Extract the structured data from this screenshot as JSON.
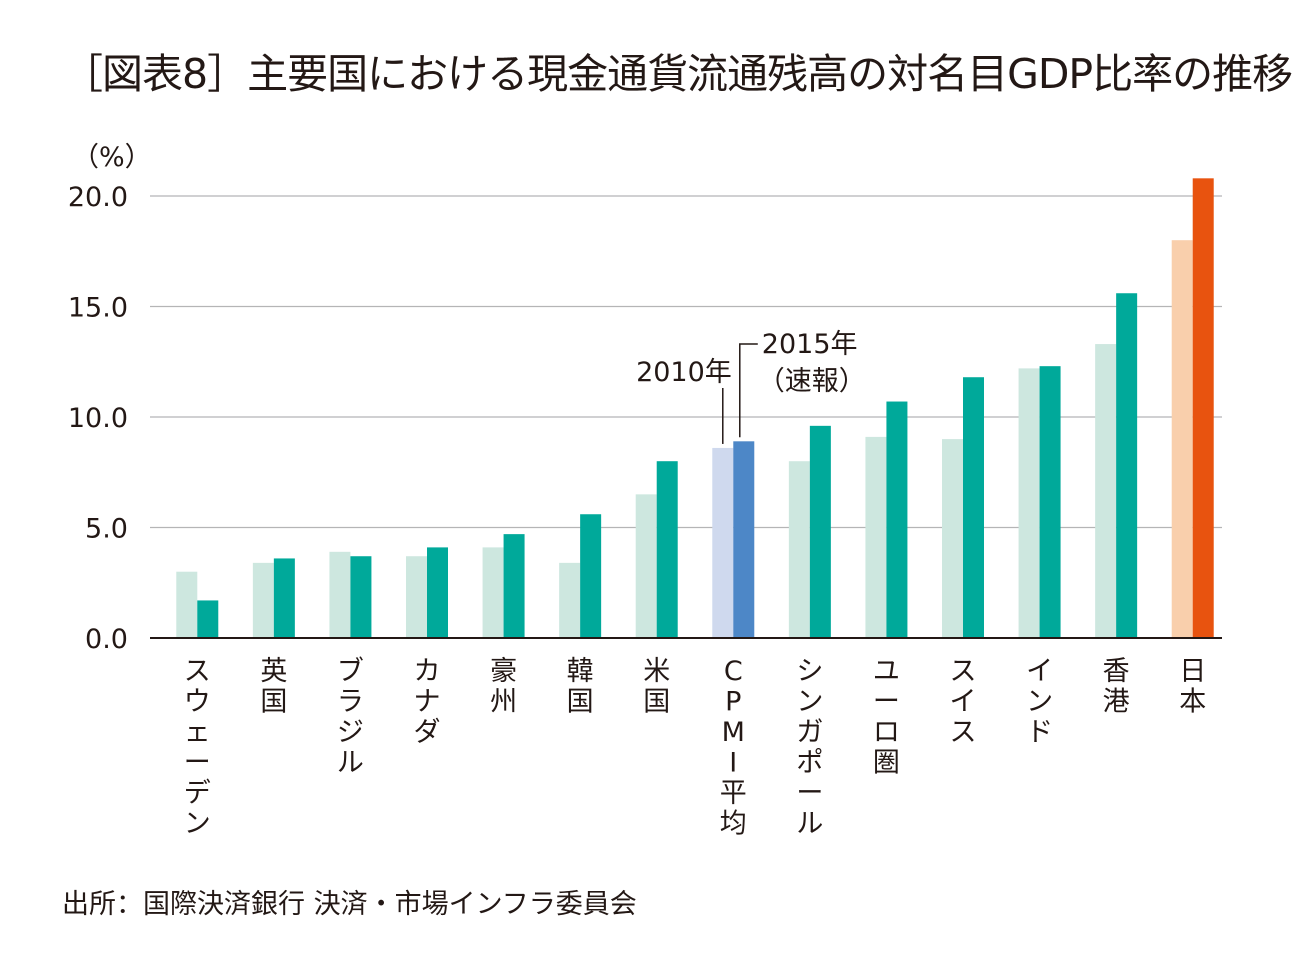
{
  "title": "［図表8］主要国における現金通貨流通残高の対名目GDP比率の推移",
  "source": "出所：国際決済銀行 決済・市場インフラ委員会",
  "chart_data": {
    "type": "bar",
    "title": "［図表8］主要国における現金通貨流通残高の対名目GDP比率の推移",
    "ylabel": "（%）",
    "xlabel": "",
    "ylim": [
      0,
      20
    ],
    "yticks": [
      "0.0",
      "5.0",
      "10.0",
      "15.0",
      "20.0"
    ],
    "grid": true,
    "categories": [
      "スウェーデン",
      "英国",
      "ブラジル",
      "カナダ",
      "豪州",
      "韓国",
      "米国",
      "CPMI平均",
      "シンガポール",
      "ユーロ圏",
      "スイス",
      "インド",
      "香港",
      "日本"
    ],
    "series": [
      {
        "name": "2010年",
        "values": [
          3.0,
          3.4,
          3.9,
          3.7,
          4.1,
          3.4,
          6.5,
          8.6,
          8.0,
          9.1,
          9.0,
          12.2,
          13.3,
          18.0
        ]
      },
      {
        "name": "2015年（速報）",
        "values": [
          1.7,
          3.6,
          3.7,
          4.1,
          4.7,
          5.6,
          8.0,
          8.9,
          9.6,
          10.7,
          11.8,
          12.3,
          15.6,
          20.8
        ]
      }
    ],
    "colors": {
      "default_2010": "#cde7df",
      "default_2015": "#00a99a",
      "cpmi_2010": "#cfd9ee",
      "cpmi_2015": "#4d87c7",
      "japan_2010": "#f9cfac",
      "japan_2015": "#e8530f",
      "grid": "#b5b5b6",
      "axis": "#231815"
    },
    "annotations": {
      "label_2010": "2010年",
      "label_2015_line1": "2015年",
      "label_2015_line2": "（速報）"
    }
  }
}
